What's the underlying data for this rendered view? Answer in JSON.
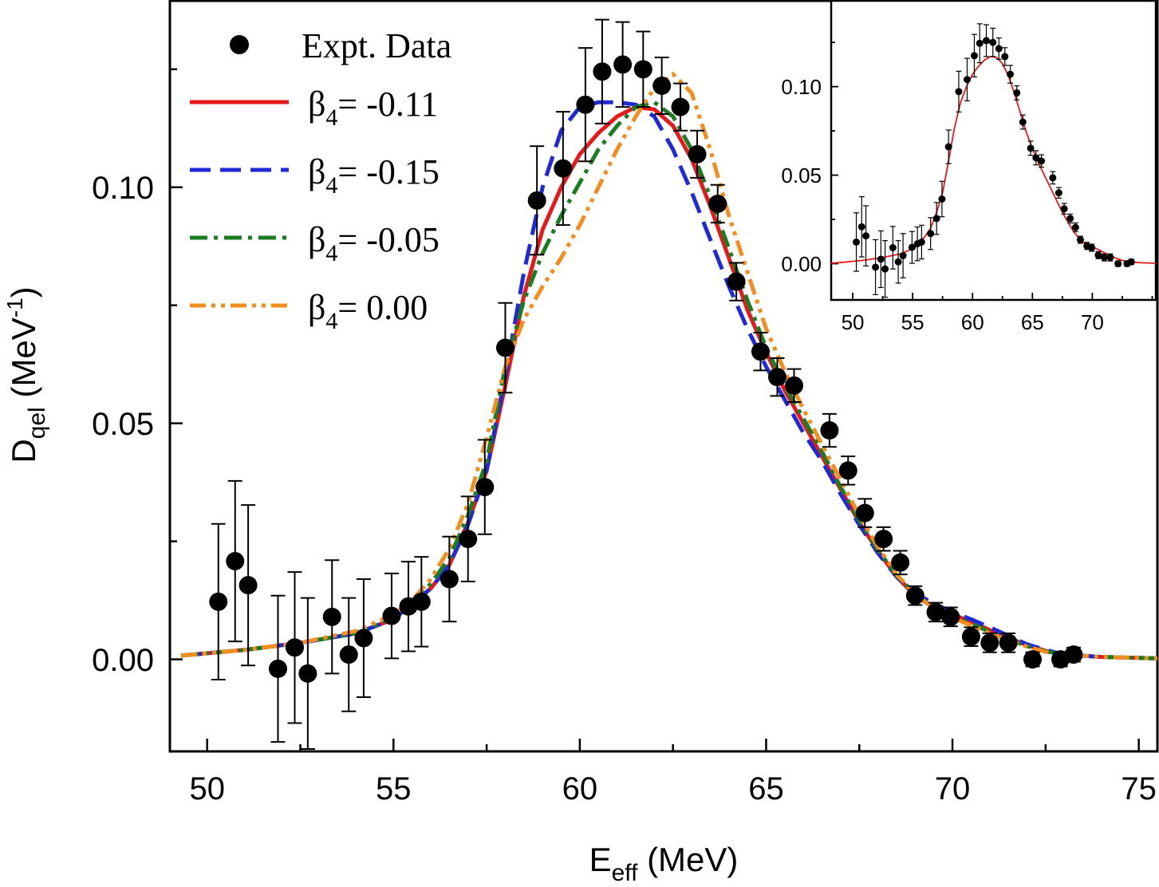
{
  "chart_data": [
    {
      "type": "scatter",
      "name": "main",
      "xlabel": {
        "main": "E",
        "sub": "eff",
        "unit": " (MeV)"
      },
      "ylabel": {
        "main": "D",
        "sub": "qel",
        "unit_pre": " (MeV",
        "sup": "-1",
        "unit_post": ")"
      },
      "xlim": [
        49.0,
        75.5
      ],
      "ylim": [
        -0.0195,
        0.1395
      ],
      "xticks": [
        50,
        55,
        60,
        65,
        70,
        75
      ],
      "xtick_labels": [
        "50",
        "55",
        "60",
        "65",
        "70",
        "75"
      ],
      "yticks": [
        0.0,
        0.05,
        0.1
      ],
      "ytick_labels": [
        "0.00",
        "0.05",
        "0.10"
      ],
      "legend": {
        "placement": "top-left",
        "entries": [
          {
            "kind": "marker",
            "label": "Expt. Data"
          },
          {
            "kind": "beta",
            "series": 0,
            "symbol": "β",
            "sub": "4",
            "value": "= -0.11"
          },
          {
            "kind": "beta",
            "series": 1,
            "symbol": "β",
            "sub": "4",
            "value": "= -0.15"
          },
          {
            "kind": "beta",
            "series": 2,
            "symbol": "β",
            "sub": "4",
            "value": "= -0.05"
          },
          {
            "kind": "beta",
            "series": 3,
            "symbol": "β",
            "sub": "4",
            "value": "= 0.00"
          }
        ]
      },
      "expt_data": {
        "label": "Expt. Data",
        "points": [
          {
            "x": 50.3,
            "y": 0.0122,
            "err": 0.0165
          },
          {
            "x": 50.75,
            "y": 0.0208,
            "err": 0.017
          },
          {
            "x": 51.1,
            "y": 0.0157,
            "err": 0.017
          },
          {
            "x": 51.9,
            "y": -0.002,
            "err": 0.0155
          },
          {
            "x": 52.35,
            "y": 0.0025,
            "err": 0.016
          },
          {
            "x": 52.7,
            "y": -0.003,
            "err": 0.016
          },
          {
            "x": 53.35,
            "y": 0.009,
            "err": 0.012
          },
          {
            "x": 53.8,
            "y": 0.001,
            "err": 0.012
          },
          {
            "x": 54.2,
            "y": 0.0045,
            "err": 0.0125
          },
          {
            "x": 54.95,
            "y": 0.0092,
            "err": 0.009
          },
          {
            "x": 55.4,
            "y": 0.0112,
            "err": 0.0095
          },
          {
            "x": 55.75,
            "y": 0.0122,
            "err": 0.0095
          },
          {
            "x": 56.5,
            "y": 0.017,
            "err": 0.009
          },
          {
            "x": 57.0,
            "y": 0.0255,
            "err": 0.009
          },
          {
            "x": 57.45,
            "y": 0.0365,
            "err": 0.01
          },
          {
            "x": 58.0,
            "y": 0.066,
            "err": 0.0095
          },
          {
            "x": 58.85,
            "y": 0.0972,
            "err": 0.0115
          },
          {
            "x": 59.55,
            "y": 0.104,
            "err": 0.012
          },
          {
            "x": 60.15,
            "y": 0.1175,
            "err": 0.012
          },
          {
            "x": 60.6,
            "y": 0.1245,
            "err": 0.011
          },
          {
            "x": 61.15,
            "y": 0.126,
            "err": 0.009
          },
          {
            "x": 61.7,
            "y": 0.125,
            "err": 0.008
          },
          {
            "x": 62.2,
            "y": 0.1215,
            "err": 0.006
          },
          {
            "x": 62.7,
            "y": 0.117,
            "err": 0.005
          },
          {
            "x": 63.15,
            "y": 0.107,
            "err": 0.005
          },
          {
            "x": 63.7,
            "y": 0.0965,
            "err": 0.004
          },
          {
            "x": 64.2,
            "y": 0.08,
            "err": 0.004
          },
          {
            "x": 64.85,
            "y": 0.0652,
            "err": 0.004
          },
          {
            "x": 65.3,
            "y": 0.0598,
            "err": 0.004
          },
          {
            "x": 65.75,
            "y": 0.058,
            "err": 0.0035
          },
          {
            "x": 66.7,
            "y": 0.0485,
            "err": 0.0035
          },
          {
            "x": 67.2,
            "y": 0.04,
            "err": 0.003
          },
          {
            "x": 67.65,
            "y": 0.031,
            "err": 0.003
          },
          {
            "x": 68.15,
            "y": 0.0255,
            "err": 0.0025
          },
          {
            "x": 68.6,
            "y": 0.0205,
            "err": 0.0025
          },
          {
            "x": 69.0,
            "y": 0.0135,
            "err": 0.002
          },
          {
            "x": 69.55,
            "y": 0.01,
            "err": 0.002
          },
          {
            "x": 69.95,
            "y": 0.009,
            "err": 0.002
          },
          {
            "x": 70.5,
            "y": 0.0048,
            "err": 0.002
          },
          {
            "x": 71.0,
            "y": 0.0035,
            "err": 0.002
          },
          {
            "x": 71.5,
            "y": 0.0035,
            "err": 0.002
          },
          {
            "x": 72.15,
            "y": 0.0,
            "err": 0.0015
          },
          {
            "x": 72.9,
            "y": 0.0,
            "err": 0.0015
          },
          {
            "x": 73.25,
            "y": 0.001,
            "err": 0.0015
          }
        ]
      },
      "series": [
        {
          "name": "β4= -0.11",
          "color": "#e8191b",
          "dash": "solid",
          "points": [
            [
              49.3,
              0.0008
            ],
            [
              51,
              0.002
            ],
            [
              52.5,
              0.0035
            ],
            [
              54,
              0.0055
            ],
            [
              55,
              0.0085
            ],
            [
              56,
              0.015
            ],
            [
              56.5,
              0.02
            ],
            [
              57,
              0.029
            ],
            [
              57.5,
              0.04
            ],
            [
              58,
              0.058
            ],
            [
              58.5,
              0.077
            ],
            [
              59,
              0.091
            ],
            [
              59.5,
              0.1
            ],
            [
              60,
              0.107
            ],
            [
              60.5,
              0.1115
            ],
            [
              61,
              0.115
            ],
            [
              61.5,
              0.117
            ],
            [
              62,
              0.1165
            ],
            [
              62.5,
              0.113
            ],
            [
              63,
              0.106
            ],
            [
              63.5,
              0.096
            ],
            [
              64,
              0.085
            ],
            [
              64.5,
              0.074
            ],
            [
              65,
              0.065
            ],
            [
              65.5,
              0.057
            ],
            [
              66,
              0.05
            ],
            [
              66.5,
              0.043
            ],
            [
              67,
              0.036
            ],
            [
              67.5,
              0.029
            ],
            [
              68,
              0.023
            ],
            [
              68.5,
              0.0175
            ],
            [
              69,
              0.0135
            ],
            [
              69.5,
              0.011
            ],
            [
              70,
              0.0095
            ],
            [
              70.5,
              0.008
            ],
            [
              71,
              0.0062
            ],
            [
              71.5,
              0.0045
            ],
            [
              72,
              0.003
            ],
            [
              72.5,
              0.0018
            ],
            [
              73,
              0.001
            ],
            [
              74,
              0.0005
            ],
            [
              75.5,
              0.0002
            ]
          ]
        },
        {
          "name": "β4= -0.15",
          "color": "#1f2ad6",
          "dash": "long-dash",
          "points": [
            [
              49.3,
              0.0008
            ],
            [
              51,
              0.002
            ],
            [
              52.5,
              0.0035
            ],
            [
              54,
              0.0055
            ],
            [
              55,
              0.0085
            ],
            [
              56,
              0.015
            ],
            [
              56.5,
              0.02
            ],
            [
              57,
              0.0285
            ],
            [
              57.5,
              0.04
            ],
            [
              58,
              0.06
            ],
            [
              58.5,
              0.082
            ],
            [
              59,
              0.1
            ],
            [
              59.5,
              0.112
            ],
            [
              60,
              0.117
            ],
            [
              60.5,
              0.118
            ],
            [
              61,
              0.118
            ],
            [
              61.5,
              0.1175
            ],
            [
              62,
              0.115
            ],
            [
              62.5,
              0.108
            ],
            [
              63,
              0.099
            ],
            [
              63.5,
              0.089
            ],
            [
              64,
              0.079
            ],
            [
              64.5,
              0.07
            ],
            [
              65,
              0.062
            ],
            [
              65.5,
              0.055
            ],
            [
              66,
              0.048
            ],
            [
              66.5,
              0.042
            ],
            [
              67,
              0.035
            ],
            [
              67.5,
              0.0285
            ],
            [
              68,
              0.0225
            ],
            [
              68.5,
              0.0175
            ],
            [
              69,
              0.014
            ],
            [
              69.5,
              0.0118
            ],
            [
              70,
              0.01
            ],
            [
              70.5,
              0.0085
            ],
            [
              71,
              0.0068
            ],
            [
              71.5,
              0.005
            ],
            [
              72,
              0.0032
            ],
            [
              72.5,
              0.002
            ],
            [
              73,
              0.001
            ],
            [
              74,
              0.0005
            ],
            [
              75.5,
              0.0002
            ]
          ]
        },
        {
          "name": "β4= -0.05",
          "color": "#1b7d22",
          "dash": "dash-dot",
          "points": [
            [
              49.3,
              0.0008
            ],
            [
              51,
              0.002
            ],
            [
              52.5,
              0.0035
            ],
            [
              54,
              0.0055
            ],
            [
              55,
              0.0088
            ],
            [
              56,
              0.016
            ],
            [
              56.5,
              0.0215
            ],
            [
              57,
              0.0305
            ],
            [
              57.5,
              0.042
            ],
            [
              58,
              0.062
            ],
            [
              58.5,
              0.076
            ],
            [
              59,
              0.086
            ],
            [
              59.5,
              0.094
            ],
            [
              60,
              0.101
            ],
            [
              60.5,
              0.108
            ],
            [
              61,
              0.113
            ],
            [
              61.5,
              0.117
            ],
            [
              62,
              0.118
            ],
            [
              62.5,
              0.115
            ],
            [
              63,
              0.108
            ],
            [
              63.5,
              0.098
            ],
            [
              64,
              0.087
            ],
            [
              64.5,
              0.076
            ],
            [
              65,
              0.066
            ],
            [
              65.5,
              0.058
            ],
            [
              66,
              0.051
            ],
            [
              66.5,
              0.044
            ],
            [
              67,
              0.0365
            ],
            [
              67.5,
              0.0295
            ],
            [
              68,
              0.0232
            ],
            [
              68.5,
              0.0178
            ],
            [
              69,
              0.0138
            ],
            [
              69.5,
              0.011
            ],
            [
              70,
              0.0092
            ],
            [
              70.5,
              0.0076
            ],
            [
              71,
              0.0058
            ],
            [
              71.5,
              0.0042
            ],
            [
              72,
              0.0028
            ],
            [
              72.5,
              0.0017
            ],
            [
              73,
              0.001
            ],
            [
              74,
              0.0005
            ],
            [
              75.5,
              0.0002
            ]
          ]
        },
        {
          "name": "β4= 0.00",
          "color": "#f28d20",
          "dash": "dash-dot-dot",
          "points": [
            [
              49.3,
              0.0008
            ],
            [
              51,
              0.002
            ],
            [
              52.5,
              0.0035
            ],
            [
              54,
              0.006
            ],
            [
              55,
              0.0095
            ],
            [
              55.5,
              0.0125
            ],
            [
              56,
              0.017
            ],
            [
              56.5,
              0.0235
            ],
            [
              57,
              0.033
            ],
            [
              57.5,
              0.047
            ],
            [
              58,
              0.062
            ],
            [
              58.5,
              0.072
            ],
            [
              59,
              0.079
            ],
            [
              59.5,
              0.085
            ],
            [
              60,
              0.092
            ],
            [
              60.5,
              0.1
            ],
            [
              61,
              0.108
            ],
            [
              61.5,
              0.115
            ],
            [
              62,
              0.121
            ],
            [
              62.5,
              0.124
            ],
            [
              63,
              0.12
            ],
            [
              63.5,
              0.108
            ],
            [
              64,
              0.094
            ],
            [
              64.5,
              0.082
            ],
            [
              65,
              0.07
            ],
            [
              65.5,
              0.061
            ],
            [
              66,
              0.053
            ],
            [
              66.5,
              0.0455
            ],
            [
              67,
              0.038
            ],
            [
              67.5,
              0.0305
            ],
            [
              68,
              0.0238
            ],
            [
              68.5,
              0.018
            ],
            [
              69,
              0.0138
            ],
            [
              69.5,
              0.0108
            ],
            [
              70,
              0.0088
            ],
            [
              70.5,
              0.0072
            ],
            [
              71,
              0.0055
            ],
            [
              71.5,
              0.004
            ],
            [
              72,
              0.0027
            ],
            [
              72.5,
              0.0016
            ],
            [
              73,
              0.001
            ],
            [
              74,
              0.0005
            ],
            [
              75.5,
              0.0002
            ]
          ]
        }
      ]
    },
    {
      "type": "scatter",
      "name": "inset",
      "xlim": [
        48.2,
        75.3
      ],
      "ylim": [
        -0.0205,
        0.1485
      ],
      "xticks": [
        50,
        55,
        60,
        65,
        70
      ],
      "xtick_labels": [
        "50",
        "55",
        "60",
        "65",
        "70"
      ],
      "yticks": [
        0.0,
        0.05,
        0.1
      ],
      "ytick_labels": [
        "0.00",
        "0.05",
        "0.10"
      ],
      "uses_data_from": "main",
      "fit_series": 0
    }
  ]
}
